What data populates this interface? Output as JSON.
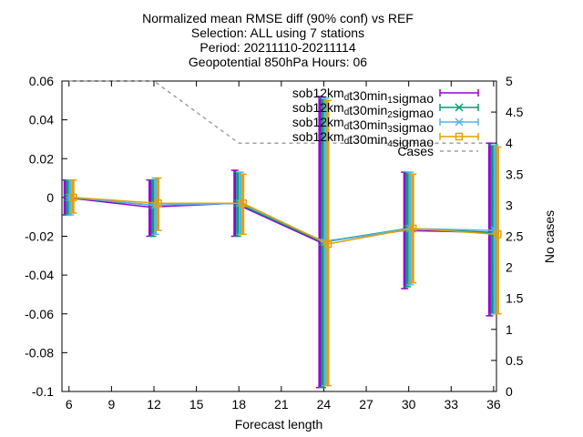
{
  "chart_data": {
    "type": "line",
    "title_lines": [
      "Normalized mean RMSE diff (90% conf) vs REF",
      "Selection: ALL using     7 stations",
      "Period: 20211110-20211114",
      "Geopotential 850hPa  Hours: 06"
    ],
    "xlabel": "Forecast length",
    "ylabel": "",
    "y2label": "No cases",
    "xlim": [
      5.5,
      36.2
    ],
    "ylim": [
      -0.1,
      0.06
    ],
    "y2lim": [
      0,
      5
    ],
    "x_ticks": [
      6,
      9,
      12,
      15,
      18,
      21,
      24,
      27,
      30,
      33,
      36
    ],
    "y_ticks": [
      -0.1,
      -0.08,
      -0.06,
      -0.04,
      -0.02,
      0,
      0.02,
      0.04,
      0.06
    ],
    "y_tick_labels": [
      "-0.1",
      "-0.08",
      "-0.06",
      "-0.04",
      "-0.02",
      "0",
      "0.02",
      "0.04",
      "0.06"
    ],
    "y2_ticks": [
      0,
      0.5,
      1,
      1.5,
      2,
      2.5,
      3,
      3.5,
      4,
      4.5,
      5
    ],
    "y2_tick_labels": [
      "0",
      "0.5",
      "1",
      "1.5",
      "2",
      "2.5",
      "3",
      "3.5",
      "4",
      "4.5",
      "5"
    ],
    "legend_position": "top-right",
    "x": [
      6,
      12,
      18,
      24,
      30,
      36
    ],
    "series": [
      {
        "name_main": "sob12km",
        "name_sub": "d",
        "name_mid": "t30min",
        "name_sub2": "1",
        "name_end": "sigmao",
        "color": "#9400d3",
        "marker": "errorbar",
        "values": [
          0.0,
          -0.005,
          -0.003,
          -0.023,
          -0.017,
          -0.018
        ],
        "low": [
          -0.009,
          -0.02,
          -0.02,
          -0.098,
          -0.047,
          -0.061
        ],
        "high": [
          0.009,
          0.009,
          0.014,
          0.052,
          0.013,
          0.028
        ]
      },
      {
        "name_main": "sob12km",
        "name_sub": "d",
        "name_mid": "t30min",
        "name_sub2": "2",
        "name_end": "sigmao",
        "color": "#009e73",
        "marker": "x",
        "values": [
          0.0,
          -0.004,
          -0.003,
          -0.023,
          -0.016,
          -0.018
        ],
        "low": [
          -0.009,
          -0.02,
          -0.02,
          -0.098,
          -0.046,
          -0.06
        ],
        "high": [
          0.009,
          0.009,
          0.013,
          0.051,
          0.013,
          0.027
        ]
      },
      {
        "name_main": "sob12km",
        "name_sub": "d",
        "name_mid": "t30min",
        "name_sub2": "3",
        "name_end": "sigmao",
        "color": "#56b4e9",
        "marker": "star",
        "values": [
          0.0,
          -0.004,
          -0.003,
          -0.023,
          -0.016,
          -0.017
        ],
        "low": [
          -0.009,
          -0.019,
          -0.019,
          -0.097,
          -0.045,
          -0.06
        ],
        "high": [
          0.009,
          0.01,
          0.013,
          0.051,
          0.013,
          0.027
        ]
      },
      {
        "name_main": "sob12km",
        "name_sub": "d",
        "name_mid": "t30min",
        "name_sub2": "4",
        "name_end": "sigmao",
        "color": "#e69f00",
        "marker": "square",
        "values": [
          0.0,
          -0.003,
          -0.003,
          -0.024,
          -0.016,
          -0.019
        ],
        "low": [
          -0.008,
          -0.017,
          -0.019,
          -0.097,
          -0.044,
          -0.06
        ],
        "high": [
          0.009,
          0.01,
          0.012,
          0.05,
          0.012,
          0.026
        ]
      }
    ],
    "cases": {
      "name": "Cases",
      "color": "#a0a0a0",
      "values": [
        5,
        5,
        4,
        4,
        4,
        4
      ]
    }
  }
}
